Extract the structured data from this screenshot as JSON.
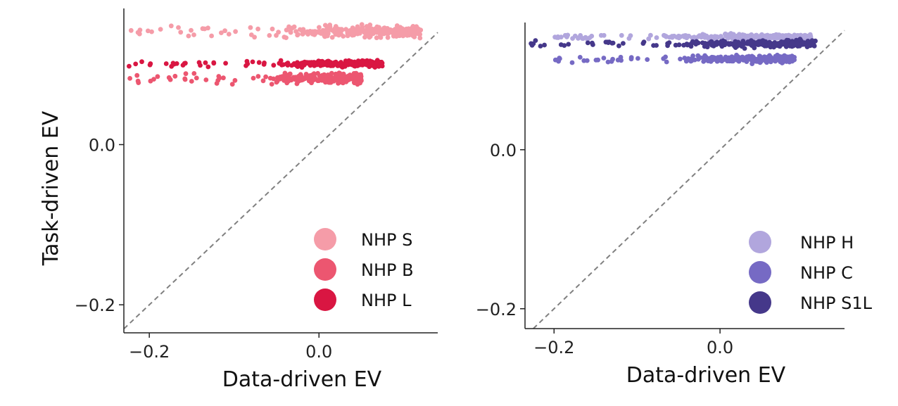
{
  "colors": {
    "nhp_s": "#f59ca8",
    "nhp_b": "#ec5670",
    "nhp_l": "#d91642",
    "nhp_h": "#b1a6dd",
    "nhp_c": "#766ac4",
    "nhp_s1l": "#45388a",
    "identity_line": "#808080",
    "axis": "#222222"
  },
  "chart_data": [
    {
      "type": "scatter",
      "xlabel": "Data-driven EV",
      "ylabel": "Task-driven EV",
      "xlim": [
        -0.23,
        0.14
      ],
      "ylim": [
        -0.235,
        0.17
      ],
      "xticks": [
        -0.2,
        0.0
      ],
      "xtick_labels": [
        "−0.2",
        "0.0"
      ],
      "yticks": [
        0.0,
        -0.2
      ],
      "ytick_labels": [
        "0.0",
        "−0.2"
      ],
      "identity_line": true,
      "legend_position": "bottom-right",
      "series": [
        {
          "name": "NHP S",
          "color_key": "nhp_s",
          "y_center": 0.141,
          "y_spread": 0.012,
          "x_min": -0.23,
          "x_max": 0.12,
          "dense_from": -0.05
        },
        {
          "name": "NHP B",
          "color_key": "nhp_b",
          "y_center": 0.083,
          "y_spread": 0.011,
          "x_min": -0.23,
          "x_max": 0.05,
          "dense_from": -0.06
        },
        {
          "name": "NHP L",
          "color_key": "nhp_l",
          "y_center": 0.101,
          "y_spread": 0.006,
          "x_min": -0.23,
          "x_max": 0.075,
          "dense_from": -0.05
        }
      ]
    },
    {
      "type": "scatter",
      "xlabel": "Data-driven EV",
      "ylabel": "",
      "xlim": [
        -0.235,
        0.15
      ],
      "ylim": [
        -0.225,
        0.16
      ],
      "xticks": [
        -0.2,
        0.0
      ],
      "xtick_labels": [
        "−0.2",
        "0.0"
      ],
      "yticks": [
        0.0,
        -0.2
      ],
      "ytick_labels": [
        "0.0",
        "−0.2"
      ],
      "identity_line": true,
      "legend_position": "bottom-right",
      "series": [
        {
          "name": "NHP H",
          "color_key": "nhp_h",
          "y_center": 0.142,
          "y_spread": 0.005,
          "x_min": -0.2,
          "x_max": 0.11,
          "dense_from": -0.07
        },
        {
          "name": "NHP C",
          "color_key": "nhp_c",
          "y_center": 0.114,
          "y_spread": 0.007,
          "x_min": -0.2,
          "x_max": 0.09,
          "dense_from": -0.04
        },
        {
          "name": "NHP S1L",
          "color_key": "nhp_s1l",
          "y_center": 0.133,
          "y_spread": 0.007,
          "x_min": -0.235,
          "x_max": 0.115,
          "dense_from": -0.05
        }
      ]
    }
  ]
}
